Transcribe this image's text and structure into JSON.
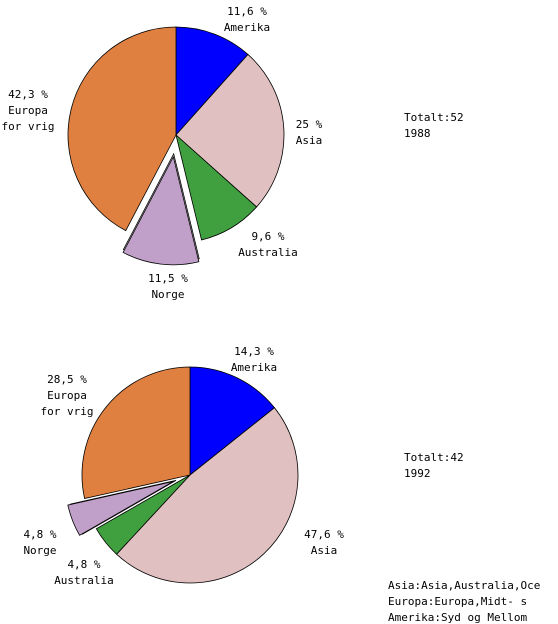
{
  "chart_data": [
    {
      "type": "pie",
      "slices": [
        {
          "label": "Amerika",
          "value": 11.6,
          "value_label": "11,6 %",
          "color": "#0000ff",
          "exploded": false
        },
        {
          "label": "Asia",
          "value": 25,
          "value_label": "25 %",
          "color": "#e0c0c0",
          "exploded": false
        },
        {
          "label": "Australia",
          "value": 9.6,
          "value_label": "9,6 %",
          "color": "#40a040",
          "exploded": false
        },
        {
          "label": "Norge",
          "value": 11.5,
          "value_label": "11,5 %",
          "color": "#c0a0c8",
          "exploded": true
        },
        {
          "label": "Europa\nfor vrig",
          "value": 42.3,
          "value_label": "42,3 %",
          "color": "#e08040",
          "exploded": false
        }
      ],
      "total_text": "Totalt:52",
      "year": "1988"
    },
    {
      "type": "pie",
      "slices": [
        {
          "label": "Amerika",
          "value": 14.3,
          "value_label": "14,3 %",
          "color": "#0000ff",
          "exploded": false
        },
        {
          "label": "Asia",
          "value": 47.6,
          "value_label": "47,6 %",
          "color": "#e0c0c0",
          "exploded": false
        },
        {
          "label": "Australia",
          "value": 4.8,
          "value_label": "4,8 %",
          "color": "#40a040",
          "exploded": false
        },
        {
          "label": "Norge",
          "value": 4.8,
          "value_label": "4,8 %",
          "color": "#c0a0c8",
          "exploded": true
        },
        {
          "label": "Europa\nfor vrig",
          "value": 28.5,
          "value_label": "28,5 %",
          "color": "#e08040",
          "exploded": false
        }
      ],
      "total_text": "Totalt:42",
      "year": "1992"
    }
  ],
  "notes": [
    "Asia:Asia,Australia,Oce",
    "Europa:Europa,Midt- s",
    "Amerika:Syd og Mellom"
  ]
}
